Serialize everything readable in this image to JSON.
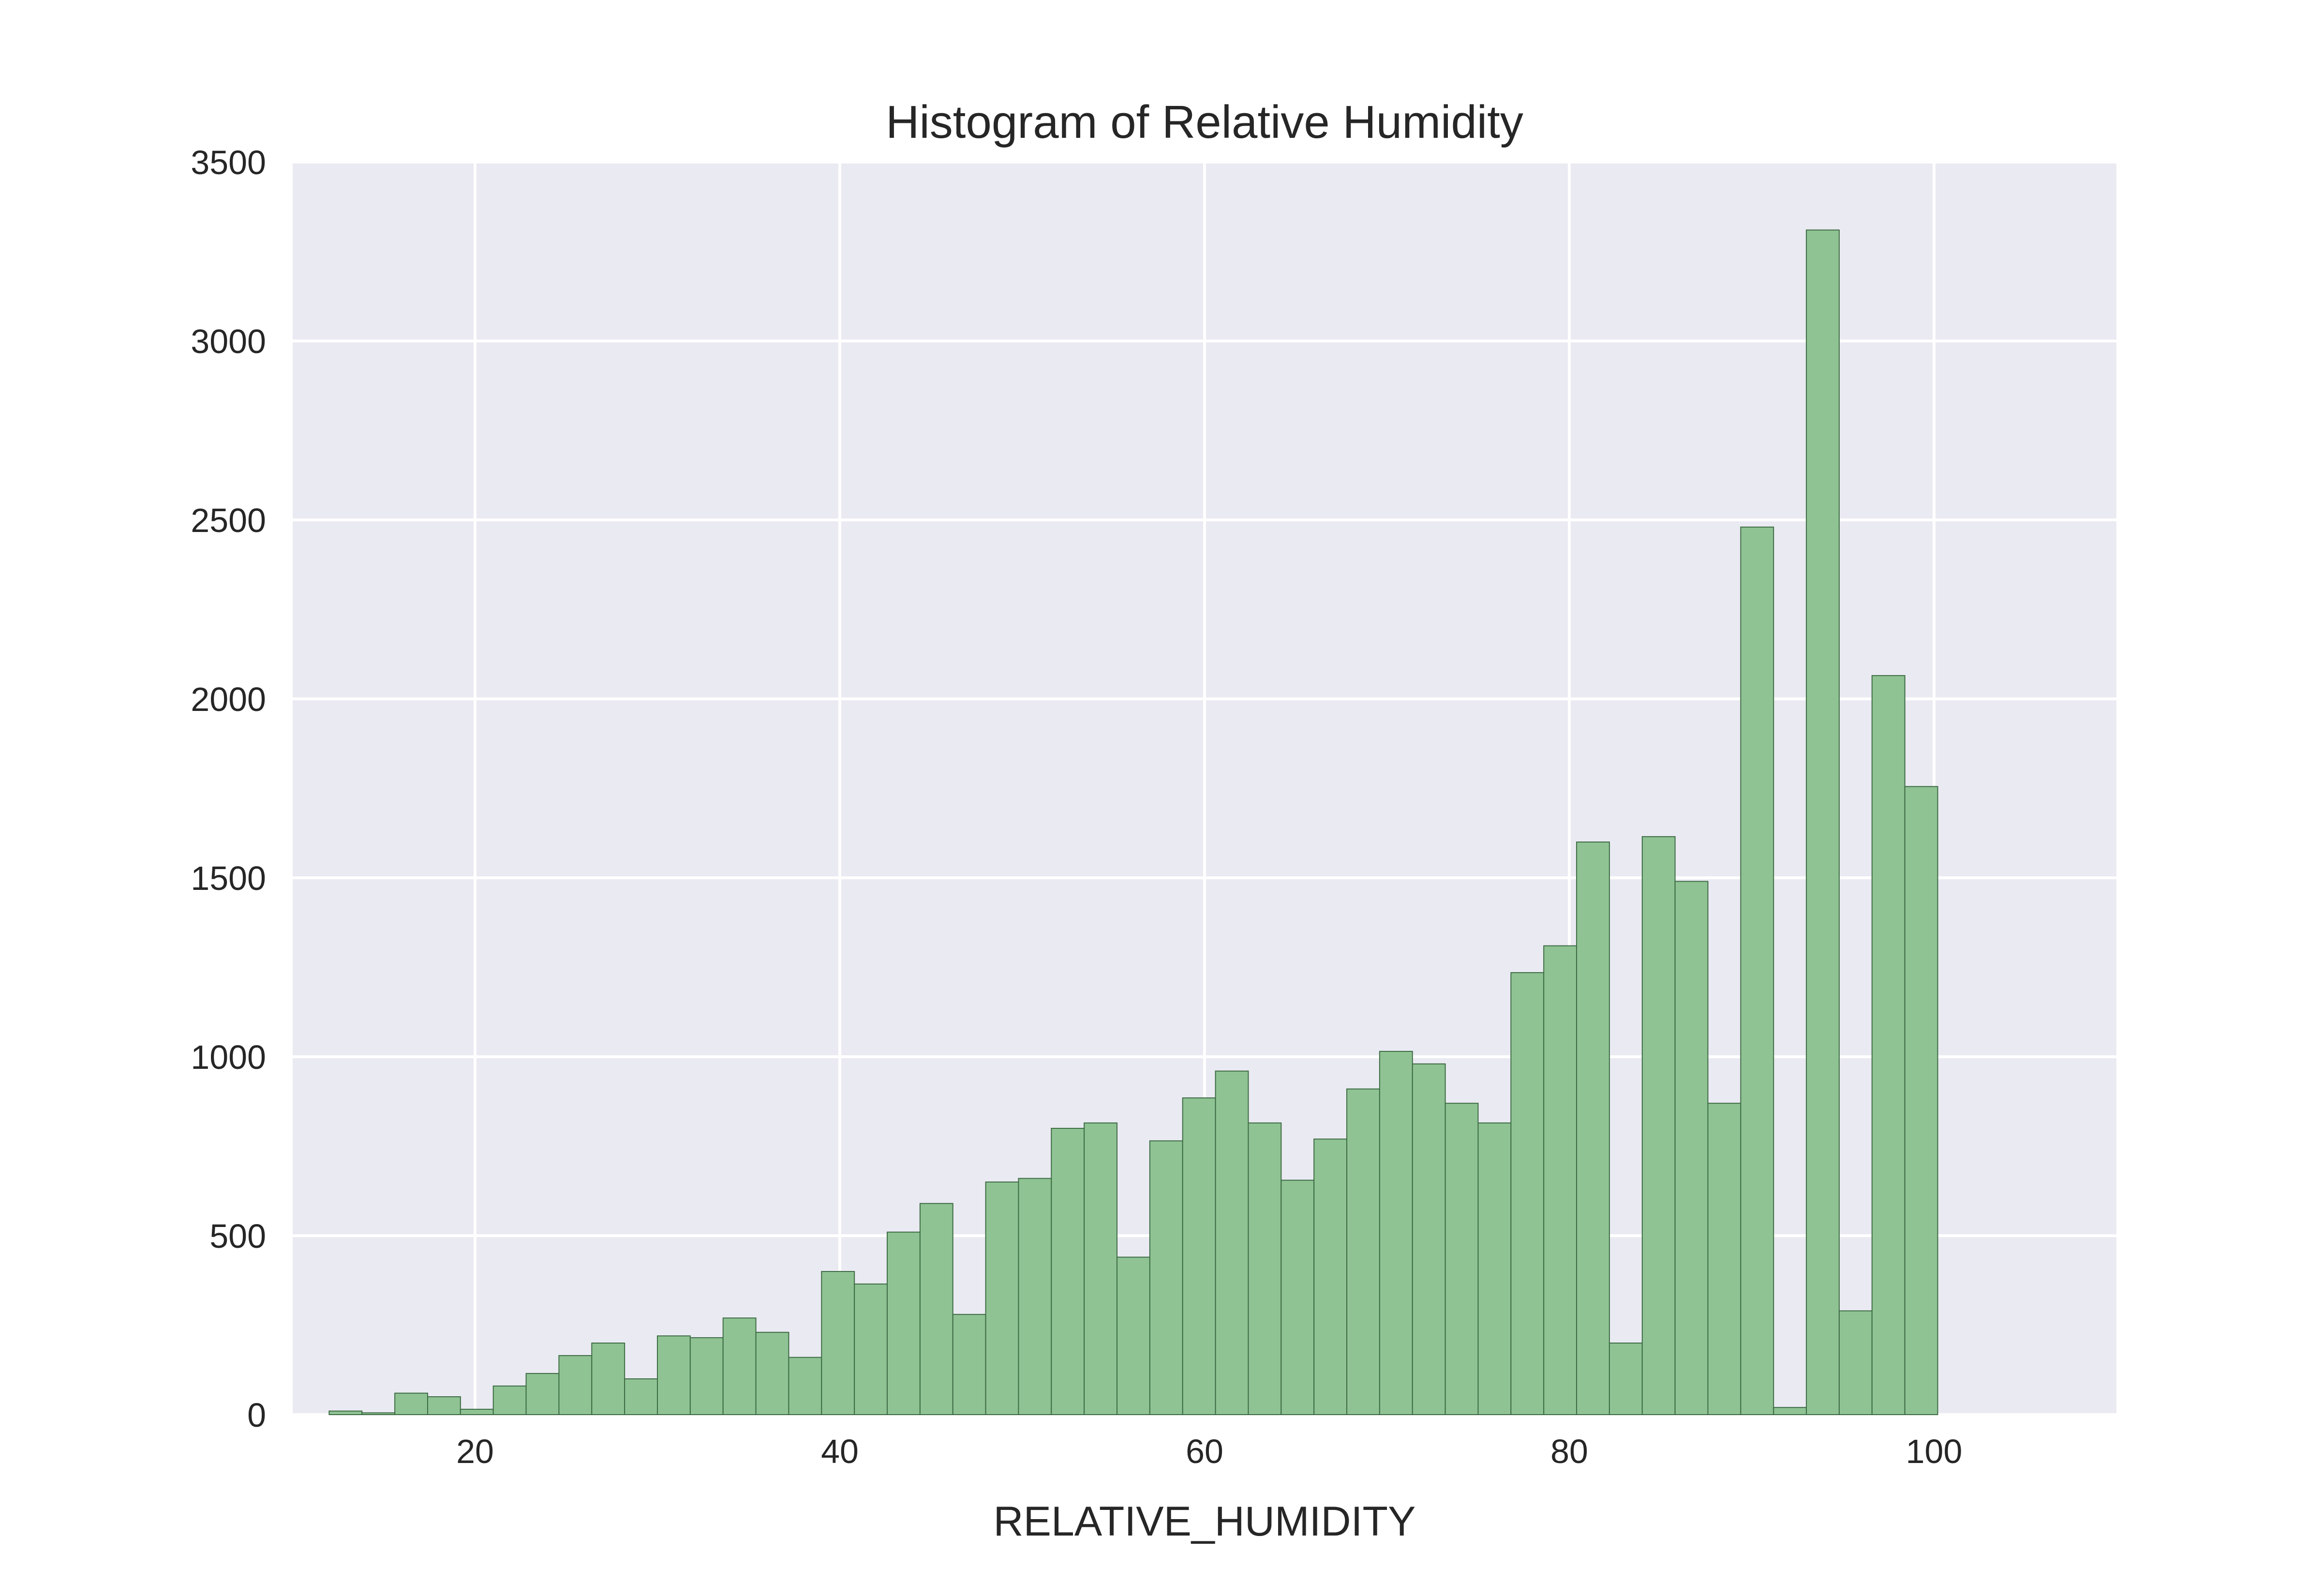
{
  "chart_data": {
    "type": "bar",
    "title": "Histogram of Relative Humidity",
    "xlabel": "RELATIVE_HUMIDITY",
    "ylabel": "",
    "xlim": [
      10,
      110
    ],
    "ylim": [
      0,
      3500
    ],
    "x_ticks": [
      20,
      40,
      60,
      80,
      100
    ],
    "y_ticks": [
      0,
      500,
      1000,
      1500,
      2000,
      2500,
      3000,
      3500
    ],
    "grid": true,
    "legend": "none",
    "colors": {
      "bar_fill": "#8fc394",
      "bar_edge": "#3d6b43",
      "plot_background": "#eaeaf2",
      "grid": "#ffffff",
      "text": "#262626"
    },
    "bin_edges": [
      12,
      13.8,
      15.6,
      17.4,
      19.2,
      21,
      22.8,
      24.6,
      26.4,
      28.2,
      30,
      31.8,
      33.6,
      35.4,
      37.2,
      39,
      40.8,
      42.6,
      44.4,
      46.2,
      48,
      49.8,
      51.6,
      53.4,
      55.2,
      57,
      58.8,
      60.6,
      62.4,
      64.2,
      66,
      67.8,
      69.6,
      71.4,
      73.2,
      75,
      76.8,
      78.6,
      80.4,
      82.2,
      84,
      85.8,
      87.6,
      89.4,
      91.2,
      93,
      94.8,
      96.6,
      98.4,
      100.2
    ],
    "values": [
      10,
      5,
      60,
      50,
      15,
      80,
      115,
      165,
      200,
      100,
      220,
      215,
      270,
      230,
      160,
      400,
      365,
      510,
      590,
      280,
      650,
      660,
      800,
      815,
      440,
      765,
      885,
      960,
      815,
      655,
      770,
      910,
      1015,
      980,
      870,
      815,
      1235,
      1310,
      1600,
      200,
      1615,
      1490,
      870,
      2480,
      20,
      3310,
      290,
      2065,
      1755
    ]
  }
}
